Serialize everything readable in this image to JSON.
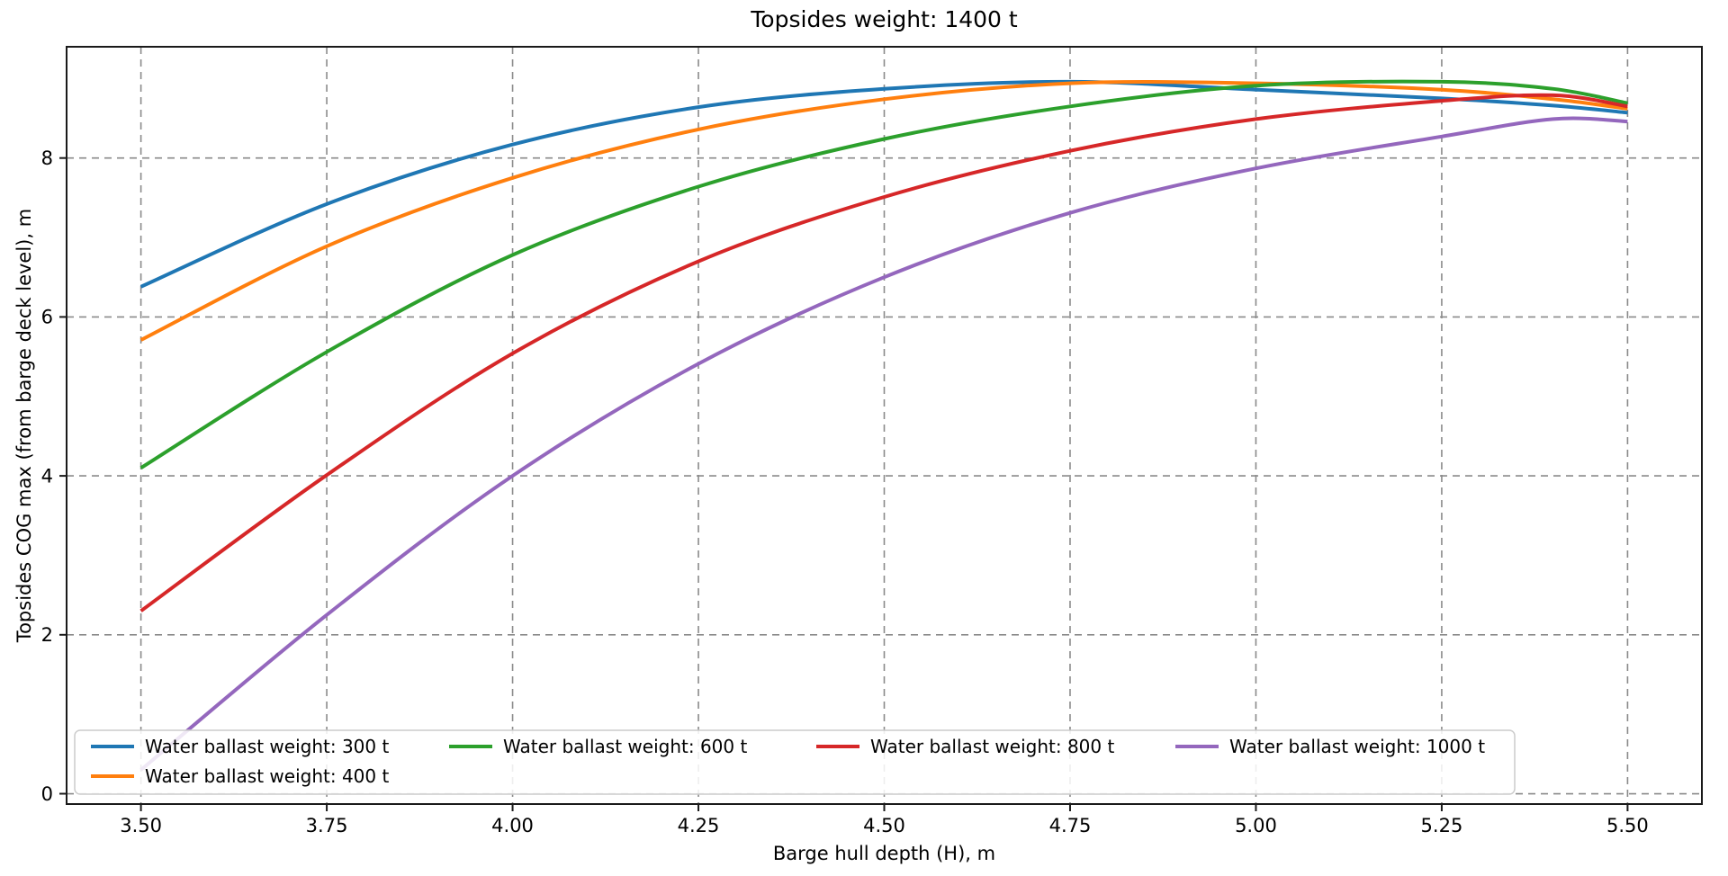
{
  "title": "Topsides weight: 1400 t",
  "chart_data": {
    "type": "line",
    "title": "Topsides weight: 1400 t",
    "xlabel": "Barge hull depth (H), m",
    "ylabel": "Topsides COG max (from barge deck level), m",
    "xlim": [
      3.4,
      5.6
    ],
    "ylim": [
      -0.13,
      9.4
    ],
    "xticks": [
      "3.50",
      "3.75",
      "4.00",
      "4.25",
      "4.50",
      "4.75",
      "5.00",
      "5.25",
      "5.50"
    ],
    "yticks": [
      "0",
      "2",
      "4",
      "6",
      "8"
    ],
    "grid": true,
    "grid_style": "dashed",
    "legend_position": "lower left, 4 columns",
    "x": [
      3.5,
      3.75,
      4.0,
      4.25,
      4.5,
      4.75,
      5.0,
      5.25,
      5.4,
      5.5
    ],
    "series": [
      {
        "name": "Water ballast weight: 300 t",
        "color": "#1f77b4",
        "values": [
          6.38,
          7.42,
          8.17,
          8.64,
          8.87,
          8.96,
          8.86,
          8.75,
          8.66,
          8.57
        ]
      },
      {
        "name": "Water ballast weight: 400 t",
        "color": "#ff7f0e",
        "values": [
          5.71,
          6.89,
          7.75,
          8.36,
          8.74,
          8.94,
          8.94,
          8.86,
          8.74,
          8.62
        ]
      },
      {
        "name": "Water ballast weight: 600 t",
        "color": "#2ca02c",
        "values": [
          4.1,
          5.56,
          6.78,
          7.64,
          8.24,
          8.65,
          8.91,
          8.96,
          8.87,
          8.69
        ]
      },
      {
        "name": "Water ballast weight: 800 t",
        "color": "#d62728",
        "values": [
          2.3,
          4.01,
          5.54,
          6.7,
          7.51,
          8.09,
          8.49,
          8.72,
          8.79,
          8.65
        ]
      },
      {
        "name": "Water ballast weight: 1000 t",
        "color": "#9467bd",
        "values": [
          0.3,
          2.25,
          4.0,
          5.41,
          6.5,
          7.31,
          7.87,
          8.27,
          8.49,
          8.46
        ]
      }
    ]
  },
  "style": {
    "grid_color": "#8a8a8a",
    "spine_color": "#1a1a1a",
    "tick_label_color": "#000000",
    "legend_border_color": "#cccccc",
    "legend_bg": "rgba(255,255,255,0.85)"
  }
}
